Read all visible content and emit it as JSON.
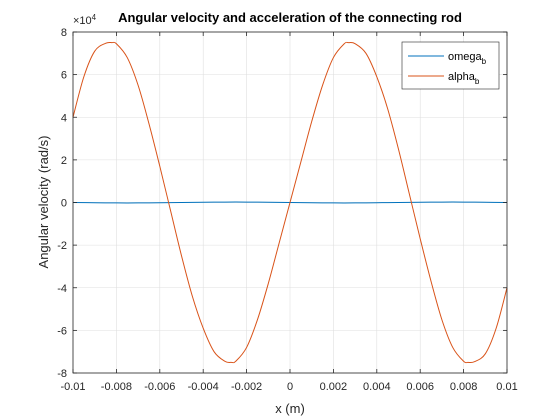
{
  "chart_data": {
    "type": "line",
    "title": "Angular velocity and acceleration of the connecting rod",
    "xlabel": "x (m)",
    "ylabel": "Angular velocity (rad/s)",
    "xlim": [
      -0.01,
      0.01
    ],
    "ylim": [
      -8,
      8
    ],
    "x_ticks": [
      "-0.01",
      "-0.008",
      "-0.006",
      "-0.004",
      "-0.002",
      "0",
      "0.002",
      "0.004",
      "0.006",
      "0.008",
      "0.01"
    ],
    "y_ticks": [
      "-8",
      "-6",
      "-4",
      "-2",
      "0",
      "2",
      "4",
      "6",
      "8"
    ],
    "y_exponent_label": "×10",
    "grid": true,
    "legend_position": "top-right",
    "series": [
      {
        "name": "omega",
        "name_subscript": "b",
        "color": "#0072BD",
        "x": [
          -0.01,
          -0.009,
          -0.008,
          -0.007,
          -0.006,
          -0.005,
          -0.004,
          -0.003,
          -0.002,
          -0.001,
          0,
          0.001,
          0.002,
          0.003,
          0.004,
          0.005,
          0.006,
          0.007,
          0.008,
          0.009,
          0.01
        ],
        "y": [
          0,
          -0.01,
          -0.02,
          -0.02,
          -0.01,
          0,
          0.01,
          0.02,
          0.02,
          0.01,
          0,
          -0.01,
          -0.02,
          -0.02,
          -0.01,
          0,
          0.01,
          0.02,
          0.02,
          0.01,
          0
        ]
      },
      {
        "name": "alpha",
        "name_subscript": "b",
        "color": "#D95319",
        "x": [
          -0.01,
          -0.0095,
          -0.009,
          -0.0085,
          -0.0082,
          -0.008,
          -0.0075,
          -0.007,
          -0.0065,
          -0.006,
          -0.0055,
          -0.005,
          -0.0045,
          -0.004,
          -0.0035,
          -0.003,
          -0.0027,
          -0.0025,
          -0.002,
          -0.0015,
          -0.001,
          -0.0005,
          0,
          0.0005,
          0.001,
          0.0015,
          0.002,
          0.0025,
          0.0027,
          0.003,
          0.0035,
          0.004,
          0.0045,
          0.005,
          0.0055,
          0.006,
          0.0065,
          0.007,
          0.0075,
          0.008,
          0.0082,
          0.0085,
          0.009,
          0.0095,
          0.01
        ],
        "y": [
          4.0,
          5.9,
          7.1,
          7.47,
          7.5,
          7.45,
          6.8,
          5.5,
          3.7,
          1.7,
          -0.4,
          -2.5,
          -4.4,
          -5.9,
          -7.0,
          -7.45,
          -7.5,
          -7.45,
          -6.8,
          -5.5,
          -3.8,
          -1.9,
          0,
          1.9,
          3.8,
          5.5,
          6.8,
          7.45,
          7.5,
          7.45,
          7.0,
          5.9,
          4.4,
          2.5,
          0.4,
          -1.7,
          -3.7,
          -5.5,
          -6.8,
          -7.45,
          -7.5,
          -7.47,
          -7.1,
          -5.9,
          -4.0
        ]
      }
    ]
  }
}
